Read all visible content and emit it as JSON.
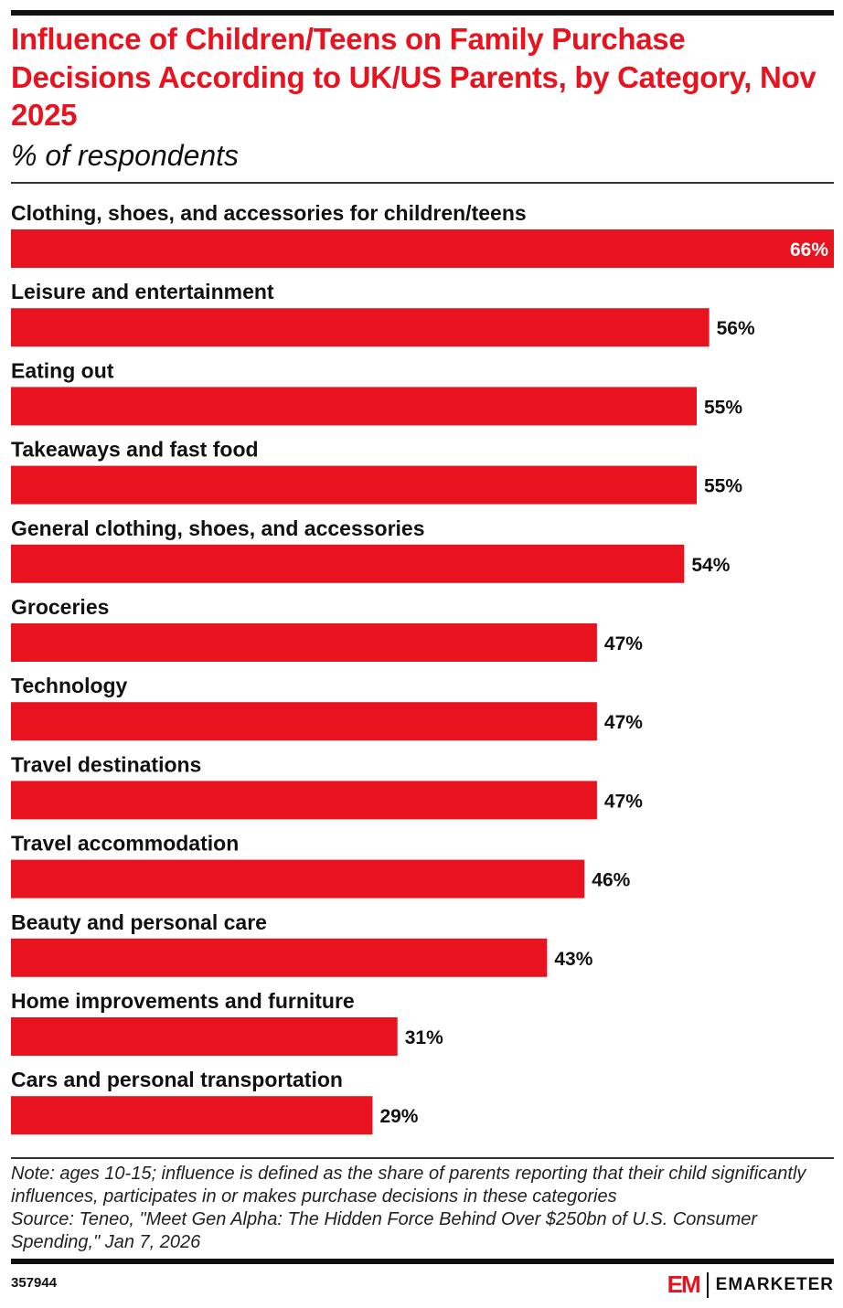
{
  "chart_data": {
    "type": "bar",
    "orientation": "horizontal",
    "title": "Influence of Children/Teens on Family Purchase Decisions According to UK/US Parents, by Category, Nov 2025",
    "subtitle": "% of respondents",
    "categories": [
      "Clothing, shoes, and accessories for children/teens",
      "Leisure and entertainment",
      "Eating out",
      "Takeaways and fast food",
      "General clothing, shoes, and accessories",
      "Groceries",
      "Technology",
      "Travel destinations",
      "Travel accommodation",
      "Beauty and personal care",
      "Home improvements and furniture",
      "Cars and personal transportation"
    ],
    "values": [
      66,
      56,
      55,
      55,
      54,
      47,
      47,
      47,
      46,
      43,
      31,
      29
    ],
    "value_labels": [
      "66%",
      "56%",
      "55%",
      "55%",
      "54%",
      "47%",
      "47%",
      "47%",
      "46%",
      "43%",
      "31%",
      "29%"
    ],
    "xlim": [
      0,
      66
    ],
    "grid": false,
    "bar_color": "#e8131e"
  },
  "note": "Note: ages 10-15; influence is defined as the share of parents reporting that their child significantly influences, participates in or makes purchase decisions in these categories",
  "source": "Source: Teneo, \"Meet Gen Alpha: The Hidden Force Behind Over $250bn of U.S. Consumer Spending,\" Jan 7, 2026",
  "chart_id": "357944",
  "logo": {
    "mark": "EM",
    "text": "EMARKETER"
  }
}
